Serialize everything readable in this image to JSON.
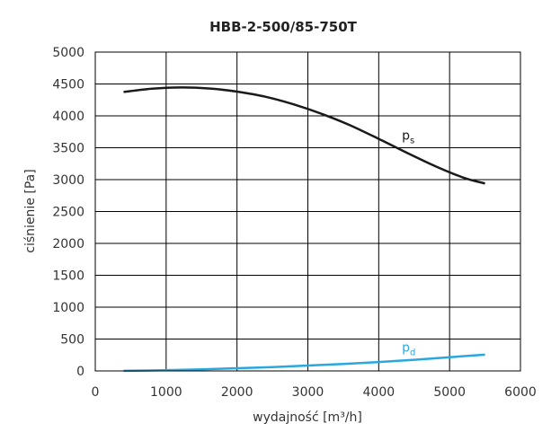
{
  "chart_data": {
    "type": "line",
    "title": "HBB-2-500/85-750T",
    "xlabel": "wydajność [m³/h]",
    "ylabel": "ciśnienie [Pa]",
    "xlim": [
      0,
      6000
    ],
    "ylim": [
      0,
      5000
    ],
    "xticks": [
      0,
      1000,
      2000,
      3000,
      4000,
      5000,
      6000
    ],
    "yticks": [
      0,
      500,
      1000,
      1500,
      2000,
      2500,
      3000,
      3500,
      4000,
      4500,
      5000
    ],
    "grid": true,
    "series": [
      {
        "name": "p",
        "name_sub": "s",
        "color": "#1a1a1a",
        "x": [
          400,
          800,
          1200,
          1600,
          2000,
          2400,
          2800,
          3200,
          3600,
          4000,
          4400,
          4800,
          5200,
          5500
        ],
        "y": [
          4375,
          4425,
          4445,
          4430,
          4380,
          4300,
          4180,
          4030,
          3850,
          3640,
          3420,
          3210,
          3030,
          2940
        ]
      },
      {
        "name": "p",
        "name_sub": "d",
        "color": "#29a8e0",
        "x": [
          400,
          1000,
          1500,
          2000,
          2500,
          3000,
          3500,
          4000,
          4500,
          5000,
          5500
        ],
        "y": [
          2,
          12,
          25,
          42,
          60,
          85,
          110,
          140,
          175,
          215,
          255
        ]
      }
    ]
  }
}
